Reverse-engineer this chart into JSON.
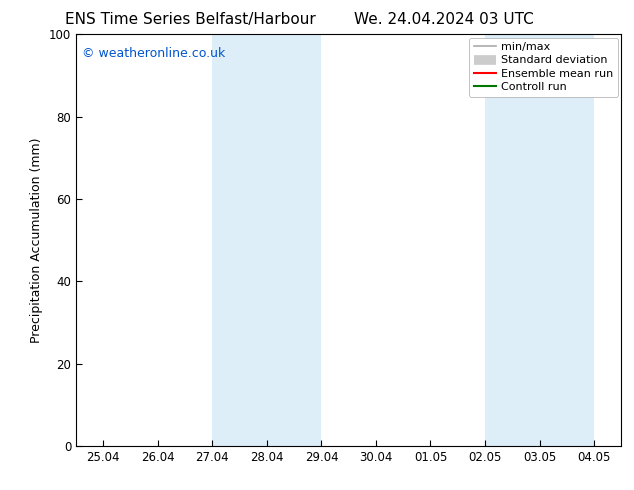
{
  "title_left": "ENS Time Series Belfast/Harbour",
  "title_right": "We. 24.04.2024 03 UTC",
  "ylabel": "Precipitation Accumulation (mm)",
  "watermark": "© weatheronline.co.uk",
  "watermark_color": "#0055cc",
  "ylim": [
    0,
    100
  ],
  "yticks": [
    0,
    20,
    40,
    60,
    80,
    100
  ],
  "xtick_labels": [
    "25.04",
    "26.04",
    "27.04",
    "28.04",
    "29.04",
    "30.04",
    "01.05",
    "02.05",
    "03.05",
    "04.05"
  ],
  "background_color": "#ffffff",
  "plot_bg_color": "#ffffff",
  "shaded_regions": [
    {
      "xstart": 2.0,
      "xend": 4.0,
      "color": "#ddeef8"
    },
    {
      "xstart": 7.0,
      "xend": 9.0,
      "color": "#ddeef8"
    }
  ],
  "legend_items": [
    {
      "label": "min/max",
      "color": "#aaaaaa",
      "lw": 1.2,
      "linestyle": "-",
      "type": "line"
    },
    {
      "label": "Standard deviation",
      "color": "#cccccc",
      "lw": 7,
      "linestyle": "-",
      "type": "thick"
    },
    {
      "label": "Ensemble mean run",
      "color": "#ff0000",
      "lw": 1.5,
      "linestyle": "-",
      "type": "line"
    },
    {
      "label": "Controll run",
      "color": "#007700",
      "lw": 1.5,
      "linestyle": "-",
      "type": "line"
    }
  ],
  "title_fontsize": 11,
  "axis_label_fontsize": 9,
  "tick_fontsize": 8.5,
  "watermark_fontsize": 9,
  "legend_fontsize": 8,
  "figsize": [
    6.34,
    4.9
  ],
  "dpi": 100
}
